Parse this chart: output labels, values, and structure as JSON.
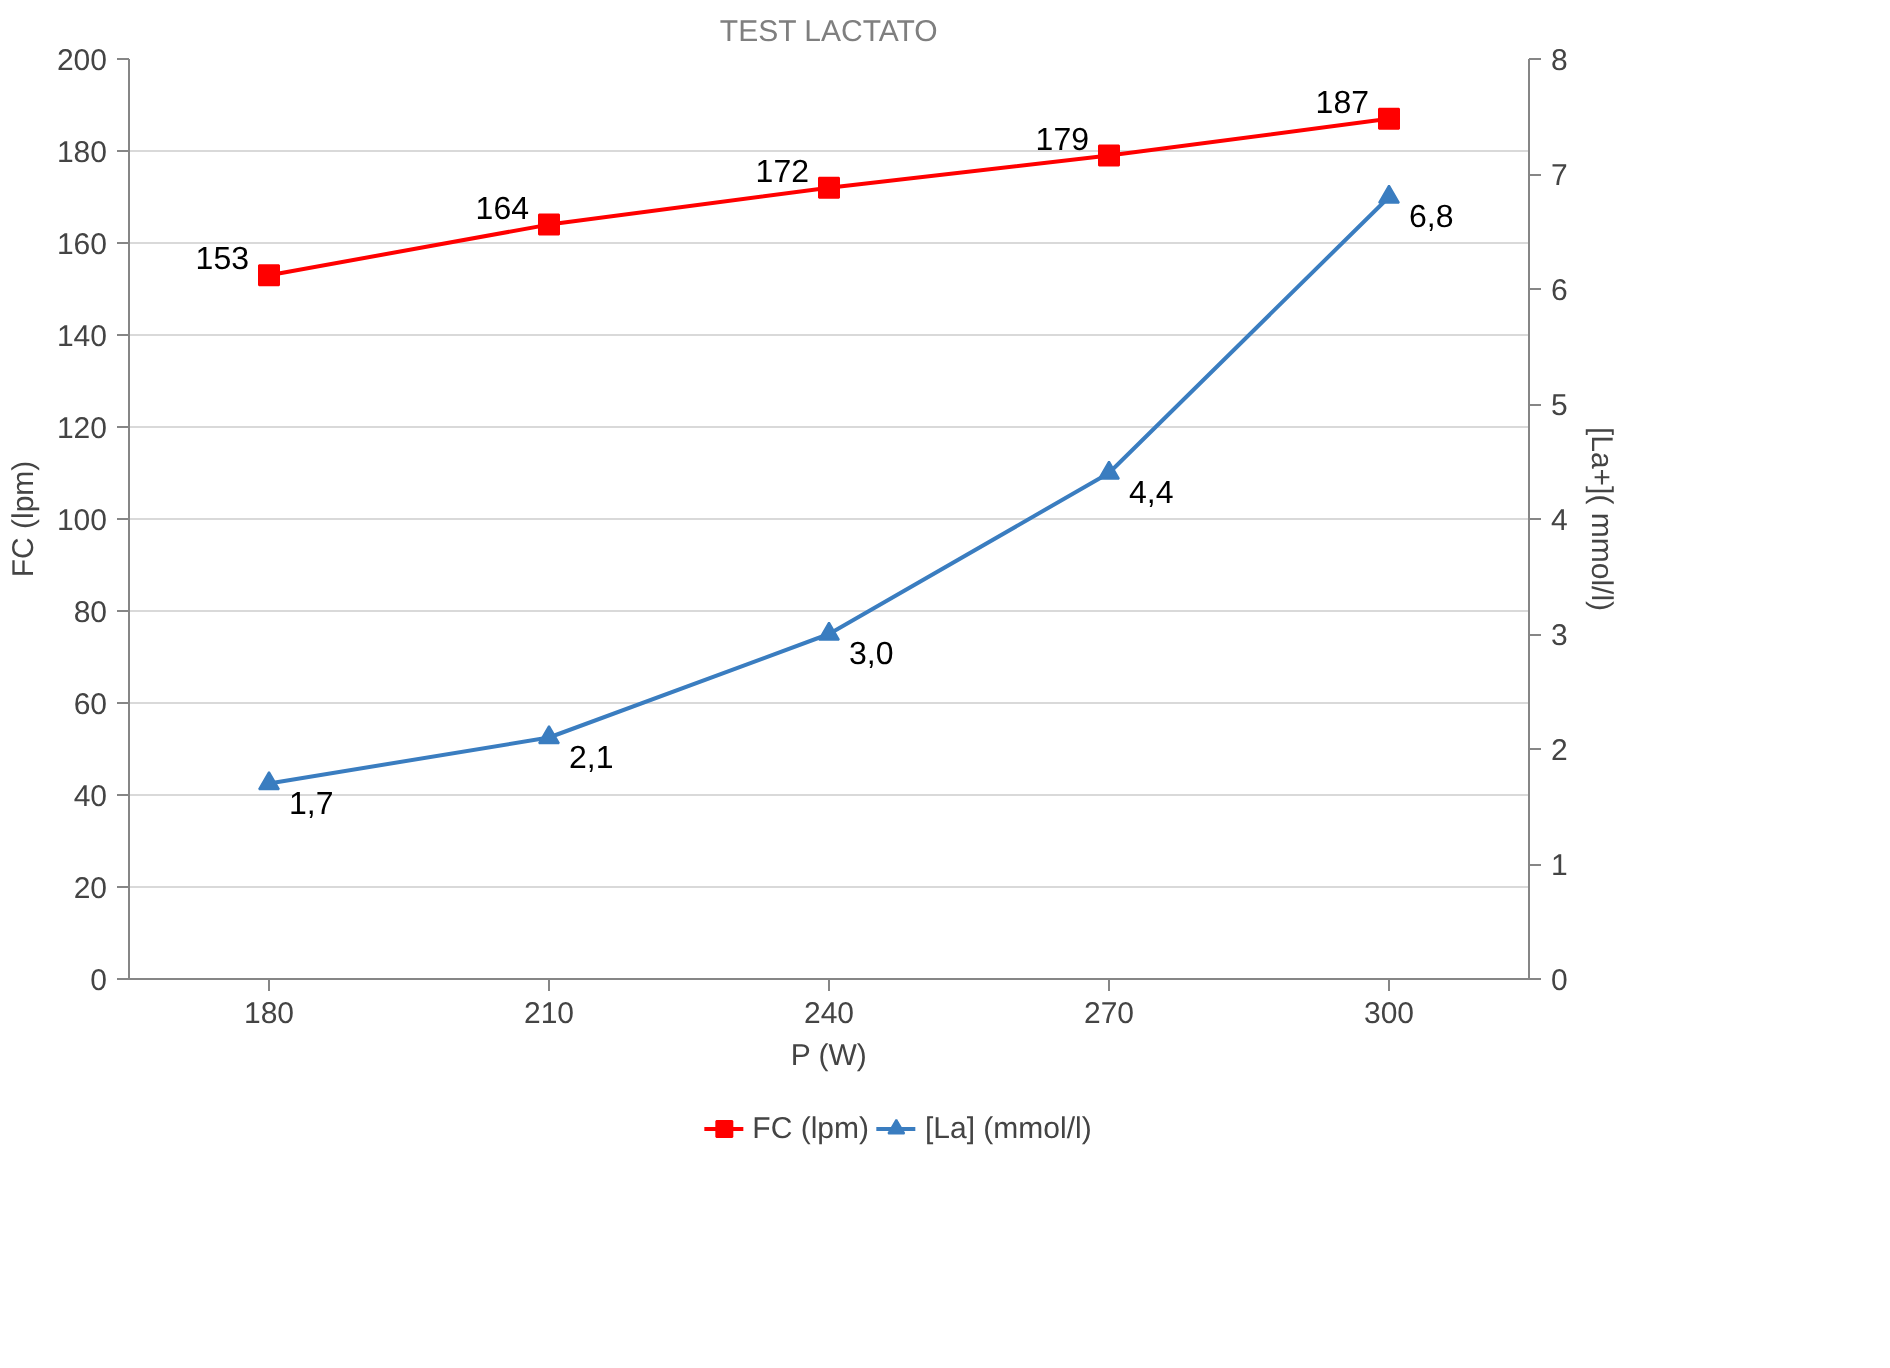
{
  "chart_data": {
    "type": "line",
    "title": "TEST LACTATO",
    "xlabel": "P (W)",
    "ylabel": "FC (lpm)",
    "y2label": "[La+]( mmol/l)",
    "categories": [
      "180",
      "210",
      "240",
      "270",
      "300"
    ],
    "series": [
      {
        "name": "FC (lpm)",
        "color": "#ff0000",
        "marker": "square",
        "values": [
          153,
          164,
          172,
          179,
          187
        ],
        "value_labels": [
          "153",
          "164",
          "172",
          "179",
          "187"
        ]
      },
      {
        "name": "[La] (mmol/l)",
        "color": "#3a7dc0",
        "marker": "triangle",
        "axis": "y2",
        "values": [
          1.7,
          2.1,
          3.0,
          4.4,
          6.8
        ],
        "value_labels": [
          "1,7",
          "2,1",
          "3,0",
          "4,4",
          "6,8"
        ]
      }
    ],
    "ylim": [
      0,
      200
    ],
    "yticks": [
      0,
      20,
      40,
      60,
      80,
      100,
      120,
      140,
      160,
      180,
      200
    ],
    "y2lim": [
      0,
      8
    ],
    "y2ticks": [
      0,
      1,
      2,
      3,
      4,
      5,
      6,
      7,
      8
    ],
    "grid": "y",
    "legend": "bottom",
    "line_style": "solid"
  }
}
